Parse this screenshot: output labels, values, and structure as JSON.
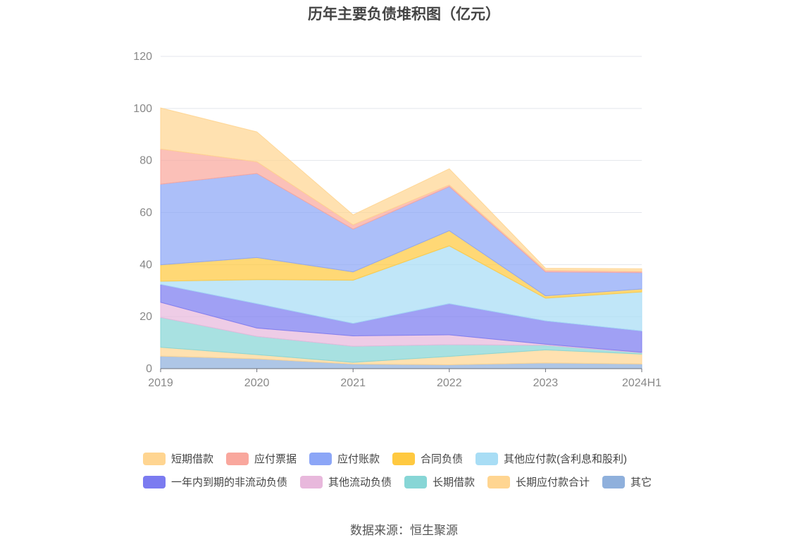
{
  "chart_data": {
    "type": "area",
    "stacked": true,
    "title": "历年主要负债堆积图（亿元）",
    "source": "数据来源：恒生聚源",
    "categories": [
      "2019",
      "2020",
      "2021",
      "2022",
      "2023",
      "2024H1"
    ],
    "ylim": [
      0,
      120
    ],
    "yticks": [
      0,
      20,
      40,
      60,
      80,
      100,
      120
    ],
    "grid": true,
    "legend_position": "bottom",
    "series": [
      {
        "name": "其它",
        "color": "#8fb0dc",
        "values": [
          4.8,
          3.8,
          1.8,
          1.5,
          2.2,
          1.8
        ]
      },
      {
        "name": "长期应付款合计",
        "color": "#ffd591",
        "values": [
          3.4,
          1.6,
          0.6,
          3.2,
          5.0,
          3.8
        ]
      },
      {
        "name": "长期借款",
        "color": "#87d6d6",
        "values": [
          11.5,
          7.0,
          6.2,
          4.5,
          1.8,
          0.5
        ]
      },
      {
        "name": "其他流动负债",
        "color": "#e8b8dc",
        "values": [
          5.8,
          3.2,
          4.0,
          3.8,
          0.4,
          0.2
        ]
      },
      {
        "name": "一年内到期的非流动负债",
        "color": "#7b7bf0",
        "values": [
          6.9,
          9.4,
          4.8,
          12.0,
          9.0,
          8.2
        ]
      },
      {
        "name": "其他应付款(含利息和股利)",
        "color": "#a8ddf5",
        "values": [
          1.2,
          9.2,
          16.6,
          22.2,
          8.7,
          15.0
        ]
      },
      {
        "name": "合同负债",
        "color": "#ffc940",
        "values": [
          6.3,
          8.5,
          3.2,
          5.8,
          0.9,
          1.1
        ]
      },
      {
        "name": "应付账款",
        "color": "#8ca6f7",
        "values": [
          31.0,
          32.3,
          16.4,
          17.0,
          9.2,
          6.3
        ]
      },
      {
        "name": "应付票据",
        "color": "#f9a79d",
        "values": [
          13.5,
          4.5,
          1.7,
          0.6,
          0.6,
          0.5
        ]
      },
      {
        "name": "短期借款",
        "color": "#ffd591",
        "values": [
          15.8,
          11.5,
          3.8,
          6.2,
          0.8,
          1.0
        ]
      }
    ],
    "legend_order": [
      "短期借款",
      "应付票据",
      "应付账款",
      "合同负债",
      "其他应付款(含利息和股利)",
      "一年内到期的非流动负债",
      "其他流动负债",
      "长期借款",
      "长期应付款合计",
      "其它"
    ]
  }
}
